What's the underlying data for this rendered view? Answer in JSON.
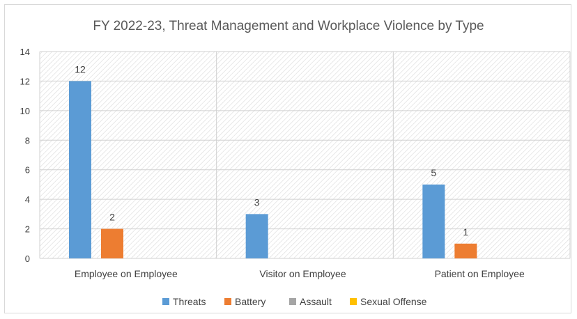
{
  "chart_data": {
    "type": "bar",
    "title": "FY 2022-23, Threat Management and Workplace Violence by Type",
    "categories": [
      "Employee on Employee",
      "Visitor on Employee",
      "Patient on Employee"
    ],
    "series": [
      {
        "name": "Threats",
        "color": "#5b9bd5",
        "values": [
          12,
          3,
          5
        ]
      },
      {
        "name": "Battery",
        "color": "#ed7d31",
        "values": [
          2,
          0,
          1
        ]
      },
      {
        "name": "Assault",
        "color": "#a5a5a5",
        "values": [
          0,
          0,
          0
        ]
      },
      {
        "name": "Sexual Offense",
        "color": "#ffc000",
        "values": [
          0,
          0,
          0
        ]
      }
    ],
    "ylim": [
      0,
      14
    ],
    "yticks": [
      0,
      2,
      4,
      6,
      8,
      10,
      12,
      14
    ],
    "grid": true,
    "legend_position": "bottom",
    "data_labels": [
      {
        "series": 0,
        "category": 0,
        "text": "12"
      },
      {
        "series": 1,
        "category": 0,
        "text": "2"
      },
      {
        "series": 0,
        "category": 1,
        "text": "3"
      },
      {
        "series": 0,
        "category": 2,
        "text": "5"
      },
      {
        "series": 1,
        "category": 2,
        "text": "1"
      }
    ]
  }
}
